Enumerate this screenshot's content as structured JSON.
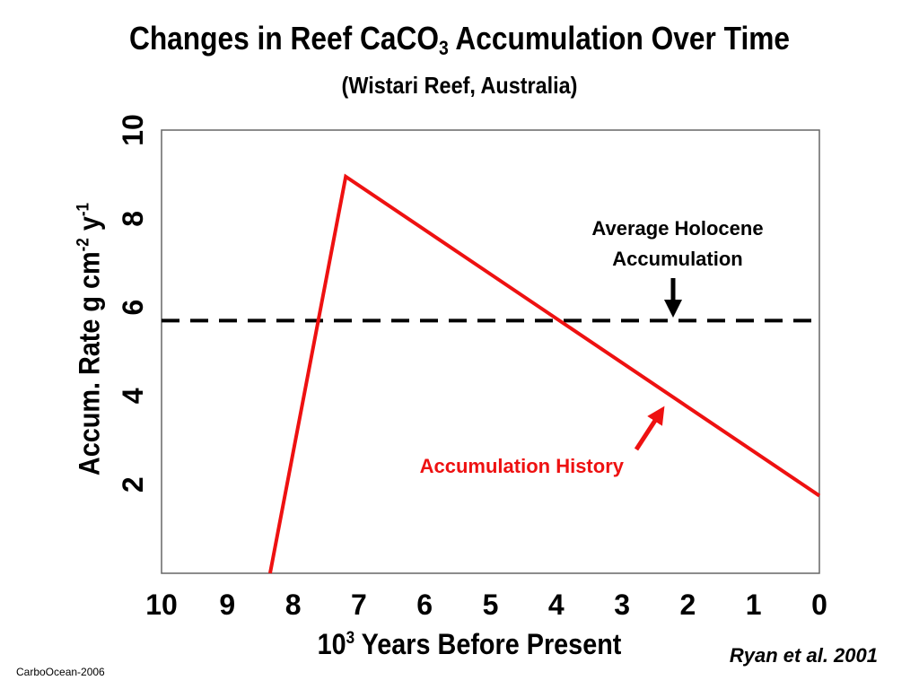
{
  "chart_data": {
    "type": "line",
    "title": "Changes in Reef CaCO",
    "title_subscript": "3",
    "title_suffix": " Accumulation Over Time",
    "subtitle": "(Wistari Reef, Australia)",
    "ylabel": {
      "main": "Accum. Rate g cm",
      "sup1": "-2",
      "mid": " y",
      "sup2": "-1"
    },
    "xlabel": {
      "prefix": "10",
      "sup": "3",
      "suffix": " Years Before Present"
    },
    "xlim": [
      10,
      0
    ],
    "ylim": [
      0,
      10
    ],
    "x_ticks": [
      "10",
      "9",
      "8",
      "7",
      "6",
      "5",
      "4",
      "3",
      "2",
      "1",
      "0"
    ],
    "y_ticks": [
      "2",
      "4",
      "6",
      "8",
      "10"
    ],
    "series": [
      {
        "color": "#ee1111",
        "x": [
          8.35,
          7.2,
          0
        ],
        "y": [
          0,
          8.95,
          1.75
        ]
      }
    ],
    "reference_line": {
      "y": 5.7,
      "style": "dashed",
      "color": "#000000"
    },
    "annotations": {
      "average": [
        "Average Holocene",
        "Accumulation"
      ],
      "history": "Accumulation History"
    },
    "grid": false
  },
  "credit": "Ryan et al. 2001",
  "footer": "CarboOcean-2006"
}
